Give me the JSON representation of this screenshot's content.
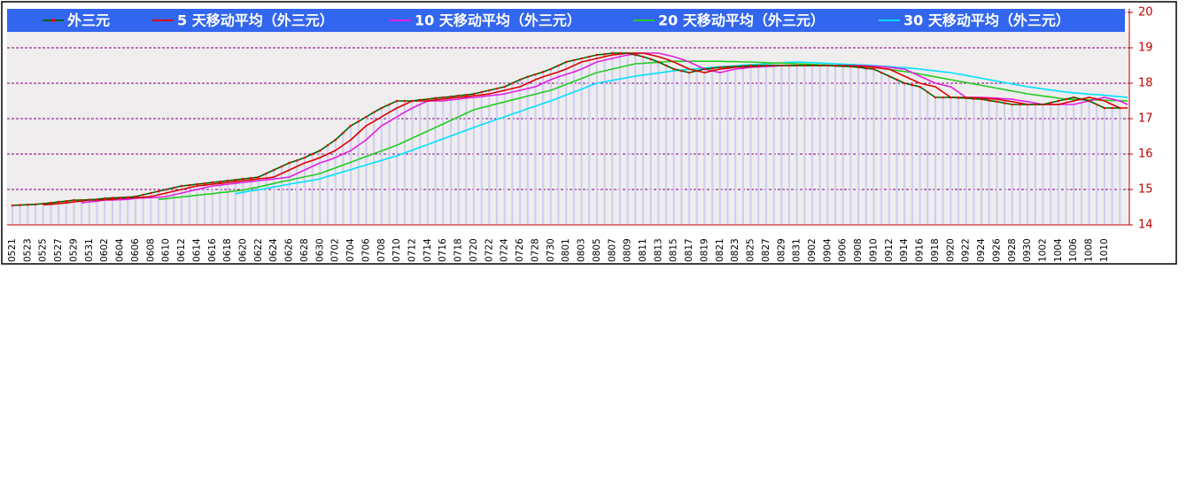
{
  "chart_data": {
    "type": "line",
    "categories": [
      "0521",
      null,
      "0523",
      null,
      "0525",
      null,
      "0527",
      null,
      "0529",
      null,
      "0531",
      null,
      "0602",
      null,
      "0604",
      null,
      "0606",
      null,
      "0608",
      null,
      "0610",
      null,
      "0612",
      null,
      "0614",
      null,
      "0616",
      null,
      "0618",
      null,
      "0620",
      null,
      "0622",
      null,
      "0624",
      null,
      "0626",
      null,
      "0628",
      null,
      "0630",
      null,
      "0702",
      null,
      "0704",
      null,
      "0706",
      null,
      "0708",
      null,
      "0710",
      null,
      "0712",
      null,
      "0714",
      null,
      "0716",
      null,
      "0718",
      null,
      "0720",
      null,
      "0722",
      null,
      "0724",
      null,
      "0726",
      null,
      "0728",
      null,
      "0730",
      null,
      "0801",
      null,
      "0803",
      null,
      "0805",
      null,
      "0807",
      null,
      "0809",
      null,
      "0811",
      null,
      "0813",
      null,
      "0815",
      null,
      "0817",
      null,
      "0819",
      null,
      "0821",
      null,
      "0823",
      null,
      "0825",
      null,
      "0827",
      null,
      "0829",
      null,
      "0831",
      null,
      "0902",
      null,
      "0904",
      null,
      "0906",
      null,
      "0908",
      null,
      "0910",
      null,
      "0912",
      null,
      "0914",
      null,
      "0916",
      null,
      "0918",
      null,
      "0920",
      null,
      "0922",
      null,
      "0924",
      null,
      "0926",
      null,
      "0928",
      null,
      "0930",
      null,
      "1002",
      null,
      "1004",
      null,
      "1006",
      null,
      "1008",
      null,
      "1010",
      null,
      null,
      null
    ],
    "series": [
      {
        "name": "外三元",
        "color": "#006400",
        "marker_color": "#ff0000",
        "bar_color": "#cfcff5",
        "values": [
          14.55,
          14.56,
          14.57,
          14.58,
          14.6,
          14.62,
          14.65,
          14.67,
          14.7,
          14.7,
          14.71,
          14.72,
          14.75,
          14.76,
          14.77,
          14.78,
          14.8,
          14.85,
          14.9,
          14.95,
          15.0,
          15.05,
          15.1,
          15.12,
          15.15,
          15.17,
          15.2,
          15.22,
          15.25,
          15.27,
          15.3,
          15.32,
          15.35,
          15.45,
          15.55,
          15.65,
          15.75,
          15.82,
          15.9,
          16.0,
          16.1,
          16.25,
          16.4,
          16.6,
          16.8,
          16.92,
          17.05,
          17.18,
          17.3,
          17.4,
          17.5,
          17.5,
          17.5,
          17.53,
          17.55,
          17.58,
          17.6,
          17.62,
          17.65,
          17.67,
          17.7,
          17.75,
          17.8,
          17.85,
          17.9,
          18.0,
          18.1,
          18.18,
          18.25,
          18.32,
          18.4,
          18.5,
          18.6,
          18.65,
          18.7,
          18.75,
          18.8,
          18.82,
          18.85,
          18.85,
          18.85,
          18.8,
          18.75,
          18.68,
          18.6,
          18.5,
          18.4,
          18.35,
          18.3,
          18.35,
          18.4,
          18.42,
          18.45,
          18.46,
          18.47,
          18.48,
          18.5,
          18.5,
          18.5,
          18.5,
          18.5,
          18.5,
          18.5,
          18.5,
          18.5,
          18.5,
          18.5,
          18.49,
          18.48,
          18.47,
          18.45,
          18.42,
          18.4,
          18.3,
          18.2,
          18.1,
          18.0,
          17.95,
          17.9,
          17.75,
          17.6,
          17.6,
          17.6,
          17.59,
          17.58,
          17.56,
          17.55,
          17.51,
          17.48,
          17.44,
          17.4,
          17.4,
          17.4,
          17.4,
          17.4,
          17.45,
          17.5,
          17.55,
          17.6,
          17.55,
          17.5,
          17.4,
          17.3,
          17.3,
          17.3,
          null
        ]
      },
      {
        "name": "5 天移动平均（外三元）",
        "color": "#dd0000",
        "values": [
          null,
          null,
          null,
          null,
          14.57,
          14.58,
          14.6,
          14.62,
          14.65,
          14.67,
          14.7,
          14.7,
          14.71,
          14.72,
          14.75,
          14.76,
          14.77,
          14.78,
          14.8,
          14.85,
          14.9,
          14.95,
          15.0,
          15.05,
          15.1,
          15.12,
          15.15,
          15.17,
          15.2,
          15.22,
          15.25,
          15.27,
          15.3,
          15.32,
          15.35,
          15.45,
          15.55,
          15.65,
          15.75,
          15.82,
          15.9,
          16.0,
          16.1,
          16.25,
          16.4,
          16.6,
          16.8,
          16.92,
          17.05,
          17.18,
          17.3,
          17.4,
          17.5,
          17.5,
          17.5,
          17.53,
          17.55,
          17.58,
          17.6,
          17.62,
          17.65,
          17.67,
          17.7,
          17.75,
          17.8,
          17.85,
          17.9,
          18.0,
          18.1,
          18.18,
          18.25,
          18.32,
          18.4,
          18.5,
          18.6,
          18.65,
          18.7,
          18.75,
          18.8,
          18.82,
          18.85,
          18.85,
          18.85,
          18.8,
          18.75,
          18.68,
          18.6,
          18.5,
          18.4,
          18.35,
          18.3,
          18.35,
          18.4,
          18.42,
          18.45,
          18.46,
          18.47,
          18.48,
          18.5,
          18.5,
          18.5,
          18.5,
          18.5,
          18.5,
          18.5,
          18.5,
          18.5,
          18.5,
          18.5,
          18.49,
          18.48,
          18.47,
          18.45,
          18.42,
          18.4,
          18.3,
          18.2,
          18.1,
          18.0,
          17.95,
          17.9,
          17.75,
          17.6,
          17.6,
          17.6,
          17.59,
          17.58,
          17.56,
          17.55,
          17.51,
          17.48,
          17.44,
          17.4,
          17.4,
          17.4,
          17.4,
          17.4,
          17.45,
          17.5,
          17.55,
          17.6,
          17.55,
          17.5,
          17.4,
          17.3,
          17.3
        ]
      },
      {
        "name": "10 天移动平均（外三元）",
        "color": "#e020e0",
        "values": [
          null,
          null,
          null,
          null,
          null,
          null,
          null,
          null,
          null,
          14.62,
          14.65,
          14.67,
          14.7,
          14.7,
          14.71,
          14.72,
          14.75,
          14.76,
          14.77,
          14.78,
          14.8,
          14.85,
          14.9,
          14.95,
          15.0,
          15.05,
          15.1,
          15.12,
          15.15,
          15.17,
          15.2,
          15.22,
          15.25,
          15.27,
          15.3,
          15.32,
          15.35,
          15.45,
          15.55,
          15.65,
          15.75,
          15.82,
          15.9,
          16.0,
          16.1,
          16.25,
          16.4,
          16.6,
          16.8,
          16.92,
          17.05,
          17.18,
          17.3,
          17.4,
          17.5,
          17.5,
          17.5,
          17.53,
          17.55,
          17.58,
          17.6,
          17.62,
          17.65,
          17.67,
          17.7,
          17.75,
          17.8,
          17.85,
          17.9,
          18.0,
          18.1,
          18.18,
          18.25,
          18.32,
          18.4,
          18.5,
          18.6,
          18.65,
          18.7,
          18.75,
          18.8,
          18.82,
          18.85,
          18.85,
          18.85,
          18.8,
          18.75,
          18.68,
          18.6,
          18.5,
          18.4,
          18.35,
          18.3,
          18.35,
          18.4,
          18.42,
          18.45,
          18.46,
          18.47,
          18.48,
          18.5,
          18.5,
          18.5,
          18.5,
          18.5,
          18.5,
          18.5,
          18.5,
          18.5,
          18.5,
          18.5,
          18.49,
          18.48,
          18.47,
          18.45,
          18.42,
          18.4,
          18.3,
          18.2,
          18.1,
          18.0,
          17.95,
          17.9,
          17.75,
          17.6,
          17.6,
          17.6,
          17.59,
          17.58,
          17.56,
          17.55,
          17.51,
          17.48,
          17.44,
          17.4,
          17.4,
          17.4,
          17.4,
          17.4,
          17.45,
          17.5,
          17.55,
          17.6,
          17.55,
          17.5,
          17.4
        ]
      },
      {
        "name": "20 天移动平均（外三元）",
        "color": "#22cc22",
        "values": [
          null,
          null,
          null,
          null,
          null,
          null,
          null,
          null,
          null,
          null,
          null,
          null,
          null,
          null,
          null,
          null,
          null,
          null,
          null,
          14.72,
          14.74,
          14.77,
          14.79,
          14.81,
          14.84,
          14.86,
          14.88,
          14.91,
          14.93,
          14.96,
          14.98,
          15.03,
          15.07,
          15.12,
          15.17,
          15.22,
          15.26,
          15.31,
          15.36,
          15.4,
          15.45,
          15.53,
          15.61,
          15.69,
          15.77,
          15.85,
          15.93,
          16.01,
          16.09,
          16.17,
          16.25,
          16.35,
          16.45,
          16.55,
          16.65,
          16.75,
          16.85,
          16.95,
          17.05,
          17.15,
          17.25,
          17.31,
          17.36,
          17.42,
          17.47,
          17.53,
          17.58,
          17.64,
          17.69,
          17.75,
          17.8,
          17.88,
          17.97,
          18.05,
          18.13,
          18.22,
          18.3,
          18.35,
          18.4,
          18.45,
          18.5,
          18.55,
          18.56,
          18.58,
          18.59,
          18.61,
          18.62,
          18.62,
          18.62,
          18.62,
          18.62,
          18.62,
          18.62,
          18.61,
          18.61,
          18.6,
          18.6,
          18.59,
          18.58,
          18.57,
          18.57,
          18.56,
          18.55,
          18.54,
          18.53,
          18.52,
          18.51,
          18.5,
          18.49,
          18.48,
          18.47,
          18.46,
          18.45,
          18.42,
          18.39,
          18.36,
          18.33,
          18.3,
          18.26,
          18.22,
          18.18,
          18.14,
          18.1,
          18.06,
          18.02,
          17.98,
          17.94,
          17.9,
          17.86,
          17.82,
          17.78,
          17.74,
          17.7,
          17.67,
          17.64,
          17.61,
          17.58,
          17.55,
          17.54,
          17.54,
          17.53,
          17.53,
          17.52,
          17.51,
          17.51,
          17.5
        ]
      },
      {
        "name": "30 天移动平均（外三元）",
        "color": "#00e0ff",
        "values": [
          null,
          null,
          null,
          null,
          null,
          null,
          null,
          null,
          null,
          null,
          null,
          null,
          null,
          null,
          null,
          null,
          null,
          null,
          null,
          null,
          null,
          null,
          null,
          null,
          null,
          null,
          null,
          null,
          null,
          14.88,
          14.92,
          14.96,
          14.99,
          15.03,
          15.07,
          15.11,
          15.15,
          15.19,
          15.22,
          15.26,
          15.3,
          15.37,
          15.43,
          15.5,
          15.56,
          15.63,
          15.69,
          15.76,
          15.82,
          15.89,
          15.95,
          16.03,
          16.11,
          16.19,
          16.27,
          16.35,
          16.43,
          16.51,
          16.59,
          16.67,
          16.75,
          16.83,
          16.9,
          16.98,
          17.05,
          17.13,
          17.2,
          17.28,
          17.35,
          17.43,
          17.5,
          17.58,
          17.67,
          17.75,
          17.83,
          17.92,
          18.0,
          18.04,
          18.08,
          18.12,
          18.16,
          18.2,
          18.23,
          18.26,
          18.29,
          18.32,
          18.35,
          18.37,
          18.39,
          18.41,
          18.43,
          18.45,
          18.46,
          18.48,
          18.49,
          18.51,
          18.52,
          18.53,
          18.55,
          18.56,
          18.57,
          18.59,
          18.6,
          18.59,
          18.58,
          18.57,
          18.56,
          18.55,
          18.54,
          18.53,
          18.52,
          18.51,
          18.5,
          18.48,
          18.47,
          18.45,
          18.44,
          18.42,
          18.4,
          18.37,
          18.35,
          18.32,
          18.3,
          18.26,
          18.22,
          18.18,
          18.14,
          18.1,
          18.06,
          18.02,
          17.98,
          17.94,
          17.9,
          17.87,
          17.84,
          17.81,
          17.78,
          17.75,
          17.73,
          17.71,
          17.69,
          17.68,
          17.66,
          17.64,
          17.62,
          17.6
        ]
      }
    ],
    "ylim": [
      14,
      20
    ],
    "yticks": [
      14,
      15,
      16,
      17,
      18,
      19,
      20
    ],
    "grid": true,
    "legend": "top",
    "axis_color": "#c00000",
    "grid_color": "#800080",
    "legend_color": "#3366ee"
  }
}
